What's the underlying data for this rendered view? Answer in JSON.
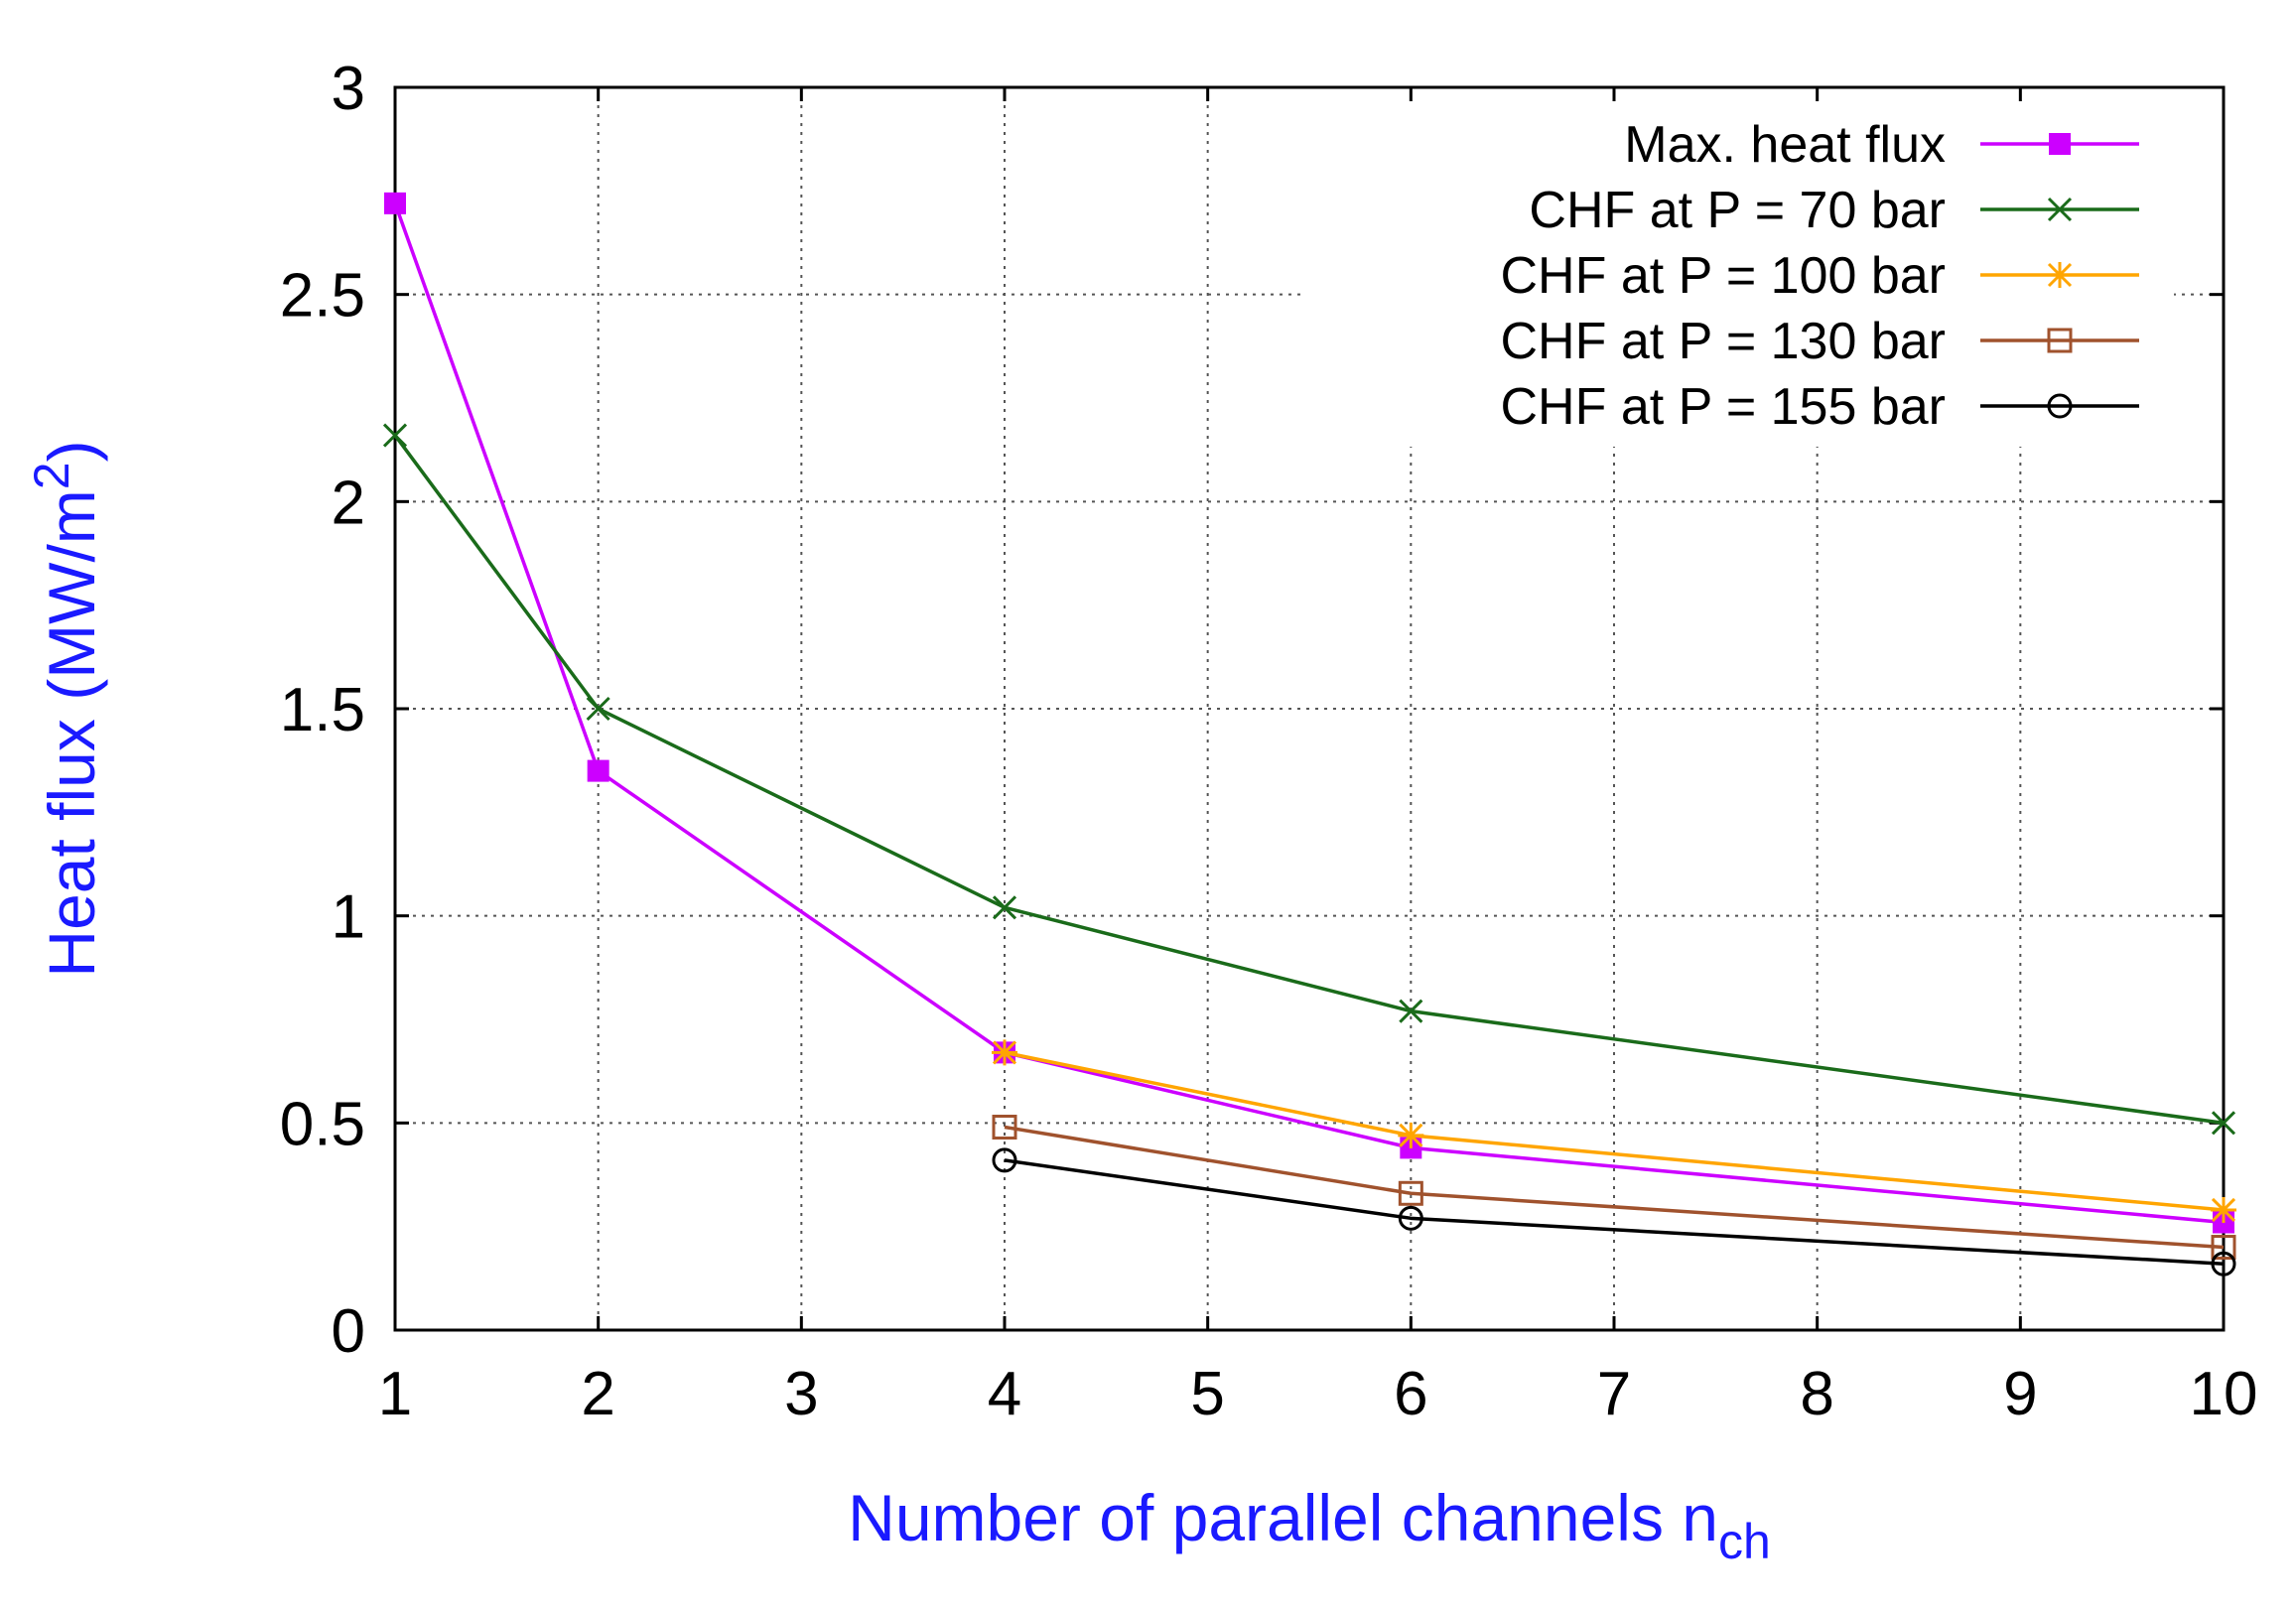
{
  "chart_data": {
    "type": "line",
    "xlabel": "Number of parallel channels n",
    "xlabel_subscript": "ch",
    "ylabel": "Heat flux (MW/m",
    "ylabel_superscript": "2",
    "ylabel_suffix": ")",
    "xlim": [
      1,
      10
    ],
    "ylim": [
      0,
      3
    ],
    "x_ticks": [
      1,
      2,
      3,
      4,
      5,
      6,
      7,
      8,
      9,
      10
    ],
    "x_tick_labels": [
      "1",
      "2",
      "3",
      "4",
      "5",
      "6",
      "7",
      "8",
      "9",
      "10"
    ],
    "y_ticks": [
      0,
      0.5,
      1,
      1.5,
      2,
      2.5,
      3
    ],
    "y_tick_labels": [
      "0",
      "0.5",
      "1",
      "1.5",
      "2",
      "2.5",
      "3"
    ],
    "grid": true,
    "legend_position": "top-right",
    "series": [
      {
        "name": "Max. heat flux",
        "color": "#cc00ff",
        "marker": "filled-square",
        "x": [
          1,
          2,
          4,
          6,
          10
        ],
        "y": [
          2.72,
          1.35,
          0.67,
          0.44,
          0.26
        ]
      },
      {
        "name": "CHF at P = 70 bar",
        "color": "#1a6b1a",
        "marker": "cross",
        "x": [
          1,
          2,
          4,
          6,
          10
        ],
        "y": [
          2.16,
          1.5,
          1.02,
          0.77,
          0.5
        ]
      },
      {
        "name": "CHF at P = 100 bar",
        "color": "#ffa500",
        "marker": "star",
        "x": [
          4,
          6,
          10
        ],
        "y": [
          0.67,
          0.47,
          0.29
        ]
      },
      {
        "name": "CHF at P = 130 bar",
        "color": "#a0522d",
        "marker": "open-square",
        "x": [
          4,
          6,
          10
        ],
        "y": [
          0.49,
          0.33,
          0.2
        ]
      },
      {
        "name": "CHF at P = 155 bar",
        "color": "#000000",
        "marker": "open-circle",
        "x": [
          4,
          6,
          10
        ],
        "y": [
          0.41,
          0.27,
          0.16
        ]
      }
    ]
  }
}
